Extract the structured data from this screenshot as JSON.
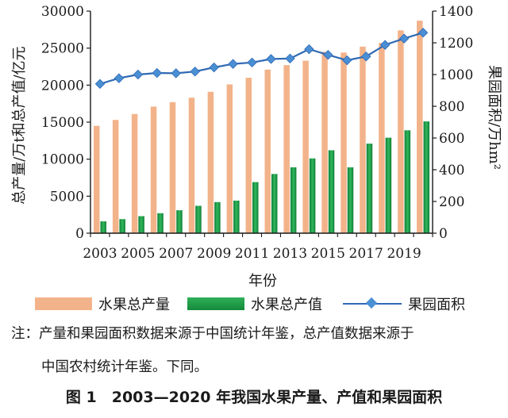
{
  "chart_data": {
    "type": "bar",
    "categories": [
      "2003",
      "2004",
      "2005",
      "2006",
      "2007",
      "2008",
      "2009",
      "2010",
      "2011",
      "2012",
      "2013",
      "2014",
      "2015",
      "2016",
      "2017",
      "2018",
      "2019",
      "2020"
    ],
    "tick_labels_x": [
      "2003",
      "2005",
      "2007",
      "2009",
      "2011",
      "2013",
      "2015",
      "2017",
      "2019"
    ],
    "xlabel": "年份",
    "ylabel_left": "总产量/万t和总产值/亿元",
    "ylabel_right": "果园面积/万hm²",
    "ylim_left": [
      0,
      30000
    ],
    "ylim_right": [
      0,
      1400
    ],
    "yticks_left": [
      "0",
      "5000",
      "10000",
      "15000",
      "20000",
      "25000",
      "30000"
    ],
    "yticks_right": [
      "0",
      "200",
      "400",
      "600",
      "800",
      "1000",
      "1200",
      "1400"
    ],
    "series": [
      {
        "name": "水果总产量",
        "type": "bar",
        "axis": "left",
        "color": "#f3b38a",
        "values": [
          14500,
          15300,
          16100,
          17100,
          17700,
          18300,
          19100,
          20100,
          21000,
          22100,
          22700,
          23300,
          24500,
          24400,
          25200,
          25700,
          27400,
          28700
        ]
      },
      {
        "name": "水果总产值",
        "type": "bar",
        "axis": "left",
        "color": "#1e9a4a",
        "values": [
          1600,
          1900,
          2300,
          2700,
          3100,
          3700,
          4200,
          4400,
          6900,
          8000,
          8900,
          10100,
          11200,
          8900,
          12100,
          12900,
          13900,
          15100
        ]
      },
      {
        "name": "果园面积",
        "type": "line",
        "axis": "right",
        "color": "#2f69b4",
        "values": [
          941,
          977,
          1000,
          1010,
          1008,
          1019,
          1045,
          1067,
          1076,
          1098,
          1101,
          1160,
          1124,
          1090,
          1114,
          1187,
          1227,
          1264
        ]
      }
    ]
  },
  "legend": {
    "production": "水果总产量",
    "value": "水果总产值",
    "area": "果园面积"
  },
  "note": {
    "line1": "注：产量和果园面积数据来源于中国统计年鉴，总产值数据来源于",
    "line2": "中国农村统计年鉴。下同。"
  },
  "caption": "图 1　2003—2020 年我国水果产量、产值和果园面积"
}
